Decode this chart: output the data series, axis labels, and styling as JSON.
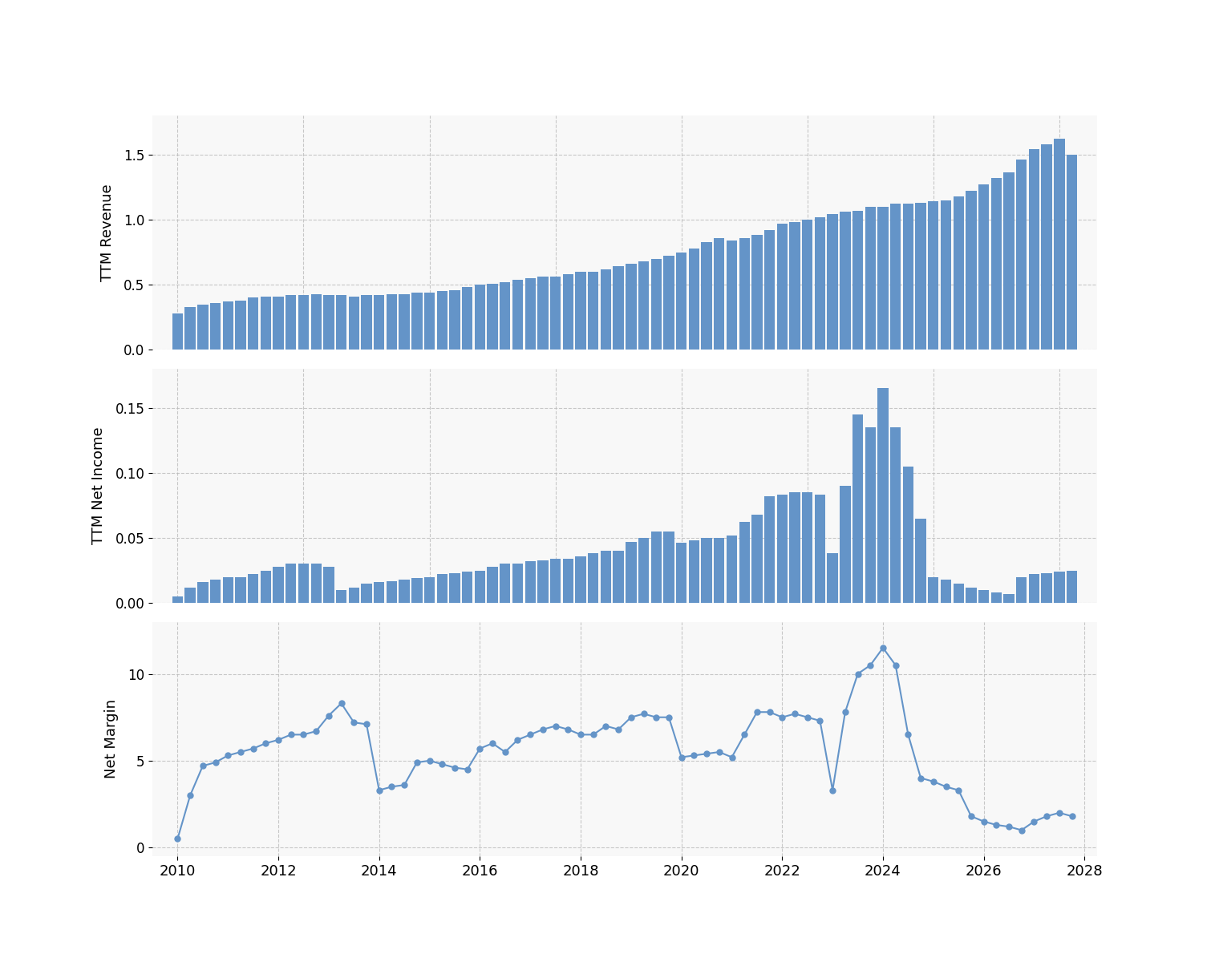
{
  "revenue": [
    0.28,
    0.33,
    0.35,
    0.36,
    0.37,
    0.38,
    0.4,
    0.41,
    0.41,
    0.42,
    0.42,
    0.43,
    0.42,
    0.42,
    0.41,
    0.42,
    0.42,
    0.43,
    0.43,
    0.44,
    0.44,
    0.45,
    0.46,
    0.48,
    0.5,
    0.51,
    0.52,
    0.54,
    0.55,
    0.56,
    0.56,
    0.58,
    0.6,
    0.6,
    0.62,
    0.64,
    0.66,
    0.68,
    0.7,
    0.72,
    0.75,
    0.78,
    0.83,
    0.86,
    0.84,
    0.86,
    0.88,
    0.92,
    0.97,
    0.98,
    1.0,
    1.02,
    1.04,
    1.06,
    1.07,
    1.1,
    1.1,
    1.12,
    1.12,
    1.13,
    1.14,
    1.15,
    1.18,
    1.22,
    1.27,
    1.32,
    1.36,
    1.46,
    1.54,
    1.58,
    1.62,
    1.5
  ],
  "net_income": [
    0.005,
    0.012,
    0.016,
    0.018,
    0.02,
    0.02,
    0.022,
    0.025,
    0.028,
    0.03,
    0.03,
    0.03,
    0.028,
    0.01,
    0.012,
    0.015,
    0.016,
    0.017,
    0.018,
    0.019,
    0.02,
    0.022,
    0.023,
    0.024,
    0.025,
    0.028,
    0.03,
    0.03,
    0.032,
    0.033,
    0.034,
    0.034,
    0.036,
    0.038,
    0.04,
    0.04,
    0.047,
    0.05,
    0.055,
    0.055,
    0.046,
    0.048,
    0.05,
    0.05,
    0.052,
    0.062,
    0.068,
    0.082,
    0.083,
    0.085,
    0.085,
    0.083,
    0.038,
    0.09,
    0.145,
    0.135,
    0.165,
    0.135,
    0.105,
    0.065,
    0.02,
    0.018,
    0.015,
    0.012,
    0.01,
    0.008,
    0.007,
    0.02,
    0.022,
    0.023,
    0.024,
    0.025
  ],
  "net_margin": [
    0.5,
    3.0,
    4.7,
    4.9,
    5.3,
    5.5,
    5.7,
    6.0,
    6.2,
    6.5,
    6.5,
    6.7,
    7.6,
    8.3,
    7.2,
    7.1,
    3.3,
    3.5,
    3.6,
    4.9,
    5.0,
    4.8,
    4.6,
    4.5,
    5.7,
    6.0,
    5.5,
    6.2,
    6.5,
    6.8,
    7.0,
    6.8,
    6.5,
    6.5,
    7.0,
    6.8,
    7.5,
    7.7,
    7.5,
    7.5,
    5.2,
    5.3,
    5.4,
    5.5,
    5.2,
    6.5,
    7.8,
    7.8,
    7.5,
    7.7,
    7.5,
    7.3,
    3.3,
    7.8,
    10.0,
    10.5,
    11.5,
    10.5,
    6.5,
    4.0,
    3.8,
    3.5,
    3.3,
    1.8,
    1.5,
    1.3,
    1.2,
    1.0,
    1.5,
    1.8,
    2.0,
    1.8
  ],
  "bar_color": "#6494c8",
  "line_color": "#6494c8",
  "bg_color": "#f8f8f8",
  "grid_color": "#bbbbbb",
  "ylabel1": "TTM Revenue",
  "ylabel2": "TTM Net Income",
  "ylabel3": "Net Margin",
  "ylim1": [
    0.0,
    1.8
  ],
  "ylim2": [
    0.0,
    0.18
  ],
  "ylim3": [
    -0.5,
    13
  ],
  "yticks1": [
    0.0,
    0.5,
    1.0,
    1.5
  ],
  "yticks2": [
    0.0,
    0.05,
    0.1,
    0.15
  ],
  "yticks3": [
    0,
    5,
    10
  ],
  "x_start_year": 2010,
  "n_points": 72
}
